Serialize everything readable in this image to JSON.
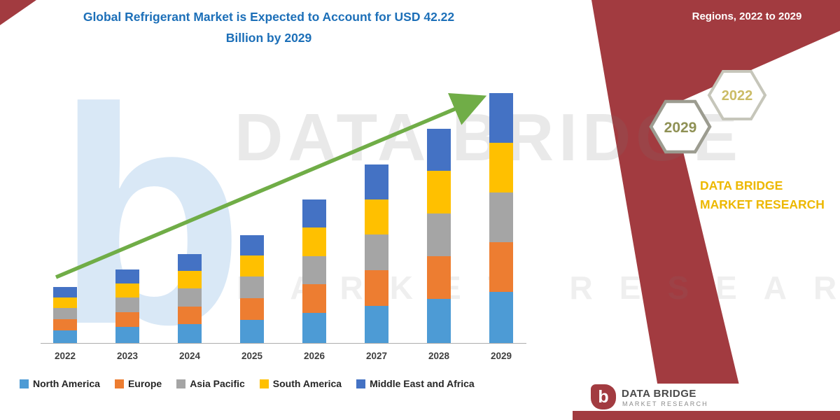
{
  "title": {
    "line1": "Global Refrigerant Market is Expected to Account for USD 42.22",
    "line2": "Billion by 2029"
  },
  "banner": {
    "heading": "Regions, 2022 to 2029",
    "hexagons": [
      {
        "label": "2029"
      },
      {
        "label": "2022"
      }
    ],
    "brand": "DATA BRIDGE MARKET RESEARCH"
  },
  "watermark": {
    "line1": "DATA BRIDGE",
    "line2": "MARKET RESEARCH",
    "letter": "b"
  },
  "footer": {
    "logo_letter": "b",
    "brand": "DATA BRIDGE",
    "sub": "MARKET RESEARCH"
  },
  "chart_data": {
    "type": "bar",
    "stacked": true,
    "title": "Global Refrigerant Market is Expected to Account for USD 42.22 Billion by 2029",
    "unit": "USD Billion",
    "categories": [
      "2022",
      "2023",
      "2024",
      "2025",
      "2026",
      "2027",
      "2028",
      "2029"
    ],
    "series": [
      {
        "name": "North America",
        "color": "#4D9BD5",
        "values": [
          2.1,
          2.7,
          3.2,
          3.9,
          5.1,
          6.3,
          7.5,
          8.7
        ]
      },
      {
        "name": "Europe",
        "color": "#ED7D31",
        "values": [
          1.9,
          2.5,
          3.0,
          3.7,
          4.8,
          6.0,
          7.2,
          8.4
        ]
      },
      {
        "name": "Asia Pacific",
        "color": "#A5A5A5",
        "values": [
          1.9,
          2.5,
          3.0,
          3.6,
          4.8,
          6.0,
          7.2,
          8.4
        ]
      },
      {
        "name": "South America",
        "color": "#FFC000",
        "values": [
          1.8,
          2.4,
          3.0,
          3.6,
          4.8,
          6.0,
          7.2,
          8.4
        ]
      },
      {
        "name": "Middle East and Africa",
        "color": "#4472C4",
        "values": [
          1.8,
          2.3,
          2.9,
          3.4,
          4.7,
          5.9,
          7.1,
          8.32
        ]
      }
    ],
    "totals": [
      9.5,
      12.4,
      15.1,
      18.2,
      24.2,
      30.2,
      36.2,
      42.22
    ],
    "ylim": [
      0,
      43.8
    ],
    "grid": false,
    "legend_position": "bottom",
    "trend_arrow": true,
    "x_axis_visible": true,
    "y_axis_visible": false
  },
  "colors": {
    "accent_maroon": "#A23B40",
    "title_blue": "#1C6FB8",
    "arrow_green": "#70AD47",
    "brand_gold": "#EDB800"
  }
}
